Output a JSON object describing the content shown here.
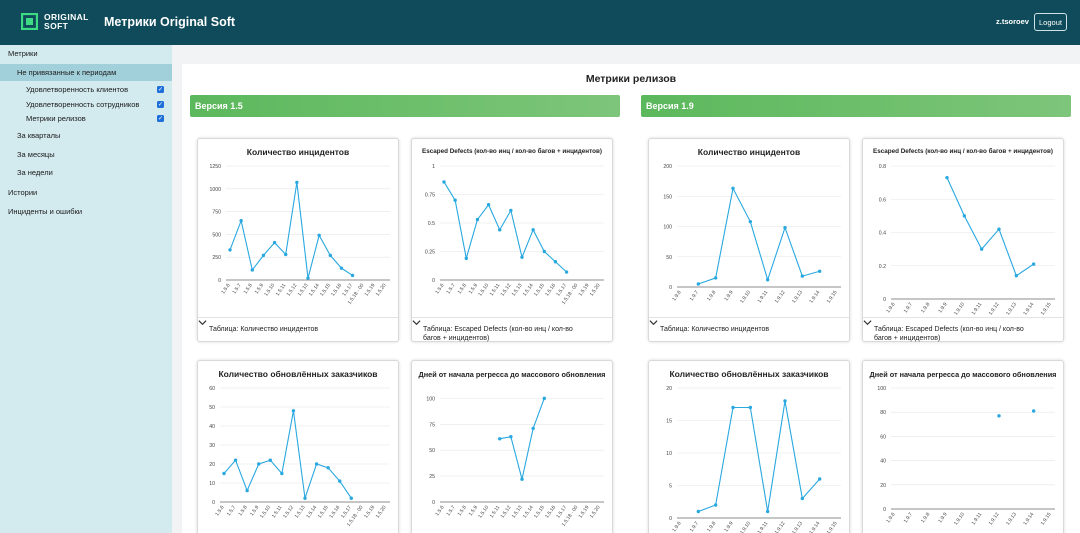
{
  "header": {
    "logo_line1": "ORIGINAL",
    "logo_line2": "SOFT",
    "app_title": "Метрики Original Soft",
    "username": "z.tsoroev",
    "logout_label": "Logout"
  },
  "colors": {
    "header": "#0f4b5a",
    "sidebar": "#d3eaef",
    "sidebar_active": "#a2d0da",
    "series": "#29a8e0",
    "version_bar": "#5cb85c"
  },
  "sidebar": {
    "metrics": "Метрики",
    "unassigned": "Не привязанные к периодам",
    "sub": [
      {
        "label": "Удовлетворенность клиентов",
        "checked": true
      },
      {
        "label": "Удовлетворенность сотрудников",
        "checked": true
      },
      {
        "label": "Метрики релизов",
        "checked": true
      }
    ],
    "quarters": "За кварталы",
    "months": "За месяцы",
    "weeks": "За недели",
    "histories": "Истории",
    "incidents": "Инциденты и ошибки"
  },
  "main": {
    "title": "Метрики релизов",
    "version_15": "Версия 1.5",
    "version_19": "Версия 1.9",
    "table_incidents": "Таблица: Количество инцидентов",
    "table_escaped": "Таблица: Escaped Defects (кол-во инц / кол-во багов + инцидентов)"
  },
  "chart_data": [
    {
      "id": "v15_incidents",
      "type": "line",
      "title": "Количество инцидентов",
      "x": [
        "1.5.6",
        "1.5.7",
        "1.5.8",
        "1.5.9",
        "1.5.10",
        "1.5.11",
        "1.5.12",
        "1.5.13",
        "1.5.14",
        "1.5.15",
        "1.5.16",
        "1.5.17",
        "1.5.18 - 00",
        "1.5.19",
        "1.5.20"
      ],
      "y": [
        330,
        650,
        110,
        270,
        410,
        280,
        1070,
        20,
        490,
        270,
        130,
        50,
        null,
        null,
        null
      ],
      "yticks": [
        0,
        250,
        500,
        750,
        1000,
        1250
      ],
      "ylim": [
        0,
        1250
      ]
    },
    {
      "id": "v15_escaped",
      "type": "line",
      "title": "Escaped Defects (кол-во инц / кол-во багов + инцидентов)",
      "x": [
        "1.5.6",
        "1.5.7",
        "1.5.8",
        "1.5.9",
        "1.5.10",
        "1.5.11",
        "1.5.12",
        "1.5.13",
        "1.5.14",
        "1.5.15",
        "1.5.16",
        "1.5.17",
        "1.5.18 - 00",
        "1.5.19",
        "1.5.20"
      ],
      "y": [
        0.86,
        0.7,
        0.19,
        0.53,
        0.66,
        0.44,
        0.61,
        0.2,
        0.44,
        0.25,
        0.16,
        0.07,
        null,
        null,
        null
      ],
      "yticks": [
        "0",
        "0.25",
        "0.5",
        "0.75",
        "1"
      ],
      "ylim": [
        0,
        1
      ]
    },
    {
      "id": "v19_incidents",
      "type": "line",
      "title": "Количество инцидентов",
      "x": [
        "1.9.6",
        "1.9.7",
        "1.9.8",
        "1.9.9",
        "1.9.10",
        "1.9.11",
        "1.9.12",
        "1.9.13",
        "1.9.14",
        "1.9.15"
      ],
      "y": [
        null,
        5,
        15,
        163,
        108,
        12,
        98,
        18,
        26,
        null
      ],
      "yticks": [
        0,
        50,
        100,
        150,
        200
      ],
      "ylim": [
        0,
        200
      ]
    },
    {
      "id": "v19_escaped",
      "type": "line",
      "title": "Escaped Defects (кол-во инц / кол-во багов + инцидентов)",
      "x": [
        "1.9.6",
        "1.9.7",
        "1.9.8",
        "1.9.9",
        "1.9.10",
        "1.9.11",
        "1.9.12",
        "1.9.13",
        "1.9.14",
        "1.9.15"
      ],
      "y": [
        null,
        null,
        null,
        0.73,
        0.5,
        0.3,
        0.42,
        0.14,
        0.21,
        null
      ],
      "yticks": [
        "0",
        "0.2",
        "0.4",
        "0.6",
        "0.8"
      ],
      "ylim": [
        0,
        0.8
      ]
    },
    {
      "id": "v15_customers",
      "type": "line",
      "title": "Количество обновлённых заказчиков",
      "x": [
        "1.5.6",
        "1.5.7",
        "1.5.8",
        "1.5.9",
        "1.5.10",
        "1.5.11",
        "1.5.12",
        "1.5.13",
        "1.5.14",
        "1.5.15",
        "1.5.16",
        "1.5.17",
        "1.5.18 - 00",
        "1.5.19",
        "1.5.20"
      ],
      "y": [
        15,
        22,
        6,
        20,
        22,
        15,
        48,
        2,
        20,
        18,
        11,
        2,
        null,
        null,
        null
      ],
      "yticks": [
        0,
        10,
        20,
        30,
        40,
        50,
        60
      ],
      "ylim": [
        0,
        60
      ]
    },
    {
      "id": "v15_regress_days",
      "type": "line",
      "title": "Дней от начала регресса до массового обновления",
      "x": [
        "1.5.6",
        "1.5.7",
        "1.5.8",
        "1.5.9",
        "1.5.10",
        "1.5.11",
        "1.5.12",
        "1.5.13",
        "1.5.14",
        "1.5.15",
        "1.5.16",
        "1.5.17",
        "1.5.18 - 00",
        "1.5.19",
        "1.5.20"
      ],
      "y": [
        null,
        null,
        null,
        null,
        null,
        61,
        63,
        22,
        71,
        100,
        null,
        null,
        null,
        null,
        null
      ],
      "yticks": [
        0,
        25,
        50,
        75,
        100
      ],
      "ylim": [
        0,
        110
      ]
    },
    {
      "id": "v19_customers",
      "type": "line",
      "title": "Количество обновлённых заказчиков",
      "x": [
        "1.9.6",
        "1.9.7",
        "1.9.8",
        "1.9.9",
        "1.9.10",
        "1.9.11",
        "1.9.12",
        "1.9.13",
        "1.9.14",
        "1.9.15"
      ],
      "y": [
        null,
        1,
        2,
        17,
        17,
        1,
        18,
        3,
        6,
        null
      ],
      "yticks": [
        0,
        5,
        10,
        15,
        20
      ],
      "ylim": [
        0,
        20
      ]
    },
    {
      "id": "v19_regress_days",
      "type": "line",
      "title": "Дней от начала регресса до массового обновления",
      "x": [
        "1.9.6",
        "1.9.7",
        "1.9.8",
        "1.9.9",
        "1.9.10",
        "1.9.11",
        "1.9.12",
        "1.9.13",
        "1.9.14",
        "1.9.15"
      ],
      "y": [
        null,
        null,
        null,
        null,
        null,
        null,
        77,
        null,
        81,
        null
      ],
      "yticks": [
        0,
        20,
        40,
        60,
        80,
        100
      ],
      "ylim": [
        0,
        100
      ]
    }
  ]
}
